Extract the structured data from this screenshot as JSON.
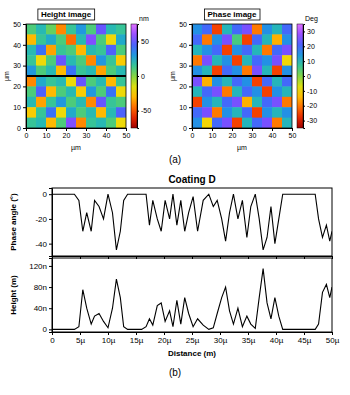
{
  "chart_data": [
    {
      "type": "heatmap",
      "title": "Height image",
      "panel": "(a)",
      "xlabel": "µm",
      "ylabel": "µm",
      "xlim": [
        0,
        50
      ],
      "ylim": [
        0,
        50
      ],
      "xticks": [
        0,
        10,
        20,
        30,
        40,
        50
      ],
      "yticks": [
        0,
        10,
        20,
        30,
        40,
        50
      ],
      "z": [
        [
          10,
          20,
          5,
          -40,
          15,
          30,
          10,
          50,
          20,
          15
        ],
        [
          -30,
          15,
          25,
          10,
          -45,
          20,
          55,
          10,
          -20,
          25
        ],
        [
          20,
          40,
          -35,
          15,
          10,
          -30,
          20,
          15,
          45,
          10
        ],
        [
          15,
          -20,
          10,
          50,
          20,
          10,
          -40,
          30,
          15,
          -25
        ],
        [
          30,
          10,
          20,
          -30,
          40,
          15,
          20,
          -35,
          10,
          20
        ],
        [
          -40,
          25,
          15,
          20,
          -20,
          50,
          10,
          20,
          -30,
          15
        ],
        [
          10,
          45,
          -30,
          10,
          20,
          -25,
          30,
          10,
          40,
          -20
        ],
        [
          20,
          -35,
          15,
          30,
          10,
          20,
          -40,
          50,
          15,
          10
        ],
        [
          -25,
          15,
          40,
          -20,
          25,
          10,
          20,
          -30,
          20,
          45
        ],
        [
          15,
          20,
          -30,
          10,
          55,
          -40,
          15,
          20,
          10,
          -20
        ]
      ],
      "colorbar": {
        "label": "nm",
        "range": [
          -75,
          75
        ],
        "ticks": [
          50,
          0,
          -50
        ]
      },
      "profile_y": 25
    },
    {
      "type": "heatmap",
      "title": "Phase image",
      "xlabel": "µm",
      "ylabel": "µm",
      "xlim": [
        0,
        50
      ],
      "ylim": [
        0,
        50
      ],
      "xticks": [
        0,
        10,
        20,
        30,
        40,
        50
      ],
      "yticks": [
        0,
        10,
        20,
        30,
        40,
        50
      ],
      "z": [
        [
          15,
          20,
          -25,
          10,
          20,
          25,
          -20,
          15,
          10,
          20
        ],
        [
          20,
          -20,
          15,
          25,
          5,
          -25,
          20,
          10,
          -15,
          15
        ],
        [
          10,
          15,
          20,
          -25,
          15,
          20,
          10,
          -20,
          20,
          25
        ],
        [
          -20,
          25,
          10,
          15,
          -25,
          10,
          20,
          15,
          25,
          -10
        ],
        [
          15,
          10,
          -25,
          20,
          15,
          -20,
          25,
          10,
          -25,
          15
        ],
        [
          25,
          -15,
          15,
          10,
          20,
          15,
          -25,
          20,
          10,
          20
        ],
        [
          10,
          20,
          25,
          -20,
          10,
          20,
          15,
          -25,
          15,
          10
        ],
        [
          -25,
          15,
          10,
          20,
          25,
          -15,
          10,
          20,
          25,
          -20
        ],
        [
          20,
          25,
          -20,
          15,
          10,
          20,
          -25,
          15,
          10,
          15
        ],
        [
          15,
          -10,
          20,
          25,
          -25,
          10,
          20,
          25,
          -20,
          10
        ]
      ],
      "colorbar": {
        "label": "Deg",
        "range": [
          -35,
          35
        ],
        "ticks": [
          30,
          20,
          10,
          0,
          -10,
          -20,
          -30
        ]
      },
      "profile_y": 25
    },
    {
      "type": "line",
      "title": "Coating D",
      "ylabel": "Phase angle (°)",
      "color": "#000000",
      "tick_labels": "y",
      "xlim": [
        0,
        5e-05
      ],
      "ylim": [
        -50,
        5
      ],
      "xticks": [
        0,
        5e-06,
        1e-05,
        1.5e-05,
        2e-05,
        2.5e-05,
        3e-05,
        3.5e-05,
        4e-05,
        4.5e-05,
        5e-05
      ],
      "yticks": [
        0,
        -20,
        -40
      ],
      "x": [
        0,
        4e-06,
        4.8e-06,
        5.5e-06,
        6.2e-06,
        7e-06,
        7.6e-06,
        8.4e-06,
        9.2e-06,
        1e-05,
        1.08e-05,
        1.15e-05,
        1.22e-05,
        1.28e-05,
        1.35e-05,
        1.6e-05,
        1.68e-05,
        1.74e-05,
        1.8e-05,
        1.88e-05,
        1.95e-05,
        2.02e-05,
        2.1e-05,
        2.16e-05,
        2.23e-05,
        2.3e-05,
        2.37e-05,
        2.44e-05,
        2.52e-05,
        2.6e-05,
        2.7e-05,
        2.8e-05,
        2.88e-05,
        2.95e-05,
        3.03e-05,
        3.1e-05,
        3.17e-05,
        3.24e-05,
        3.32e-05,
        3.4e-05,
        3.48e-05,
        3.55e-05,
        3.63e-05,
        3.7e-05,
        3.77e-05,
        3.84e-05,
        3.91e-05,
        3.98e-05,
        4.05e-05,
        4.12e-05,
        4.2e-05,
        4.7e-05,
        4.76e-05,
        4.83e-05,
        4.9e-05,
        4.96e-05,
        5e-05
      ],
      "values": [
        0,
        0,
        -5,
        -30,
        -15,
        -30,
        -5,
        -10,
        -20,
        0,
        -15,
        -45,
        -30,
        -5,
        0,
        0,
        0,
        -25,
        -5,
        -20,
        -30,
        -5,
        -20,
        0,
        -25,
        -5,
        -30,
        -15,
        -2,
        -30,
        -5,
        0,
        -10,
        -5,
        -20,
        -38,
        -15,
        0,
        -20,
        -5,
        -35,
        -10,
        0,
        -20,
        -45,
        -35,
        -10,
        -40,
        -20,
        0,
        0,
        0,
        -20,
        -35,
        -25,
        -38,
        -30
      ]
    },
    {
      "type": "line",
      "ylabel": "Height (m)",
      "xlabel": "Distance (m)",
      "panel": "(b)",
      "color": "#000000",
      "xlim": [
        0,
        5e-05
      ],
      "ylim": [
        -5e-09,
        1.35e-07
      ],
      "xticks": [
        0,
        {
          "value": 5e-06,
          "label": "5µ"
        },
        {
          "value": 1e-05,
          "label": "10µ"
        },
        {
          "value": 1.5e-05,
          "label": "15µ"
        },
        {
          "value": 2e-05,
          "label": "20µ"
        },
        {
          "value": 2.5e-05,
          "label": "25µ"
        },
        {
          "value": 3e-05,
          "label": "30µ"
        },
        {
          "value": 3.5e-05,
          "label": "35µ"
        },
        {
          "value": 4e-05,
          "label": "40µ"
        },
        {
          "value": 4.5e-05,
          "label": "45µ"
        },
        {
          "value": 5e-05,
          "label": "50µ"
        }
      ],
      "yticks": [
        0,
        {
          "value": 4e-08,
          "label": "40n"
        },
        {
          "value": 8e-08,
          "label": "80n"
        },
        {
          "value": 1.2e-07,
          "label": "120n"
        }
      ],
      "x": [
        0,
        4e-06,
        4.8e-06,
        5.5e-06,
        6.2e-06,
        7e-06,
        7.6e-06,
        8.4e-06,
        9.2e-06,
        1e-05,
        1.08e-05,
        1.15e-05,
        1.22e-05,
        1.28e-05,
        1.35e-05,
        1.6e-05,
        1.68e-05,
        1.74e-05,
        1.8e-05,
        1.88e-05,
        1.95e-05,
        2.02e-05,
        2.1e-05,
        2.16e-05,
        2.23e-05,
        2.3e-05,
        2.37e-05,
        2.44e-05,
        2.52e-05,
        2.6e-05,
        2.7e-05,
        2.8e-05,
        2.88e-05,
        2.95e-05,
        3.03e-05,
        3.1e-05,
        3.17e-05,
        3.24e-05,
        3.32e-05,
        3.4e-05,
        3.48e-05,
        3.55e-05,
        3.63e-05,
        3.7e-05,
        3.77e-05,
        3.84e-05,
        3.91e-05,
        3.98e-05,
        4.05e-05,
        4.12e-05,
        4.2e-05,
        4.7e-05,
        4.76e-05,
        4.83e-05,
        4.9e-05,
        4.96e-05,
        5e-05
      ],
      "values": [
        0,
        0,
        5e-09,
        7.5e-08,
        4e-08,
        1e-08,
        2.5e-08,
        3e-08,
        1.5e-08,
        3e-09,
        4e-08,
        9.5e-08,
        6e-08,
        5e-09,
        0,
        0,
        5e-09,
        2e-08,
        8e-09,
        4.5e-08,
        5e-08,
        1.5e-08,
        3.5e-08,
        5e-09,
        5.5e-08,
        1e-08,
        6e-08,
        3e-08,
        5e-09,
        2e-08,
        8e-09,
        0,
        3e-09,
        3e-08,
        6e-08,
        8e-08,
        3.5e-08,
        1e-08,
        4e-08,
        5e-09,
        2.5e-08,
        1e-08,
        2e-09,
        6e-08,
        1.15e-07,
        5e-08,
        2e-08,
        6e-08,
        2.5e-08,
        0,
        0,
        0,
        1e-08,
        7e-08,
        8.5e-08,
        6e-08,
        8e-08
      ]
    }
  ]
}
